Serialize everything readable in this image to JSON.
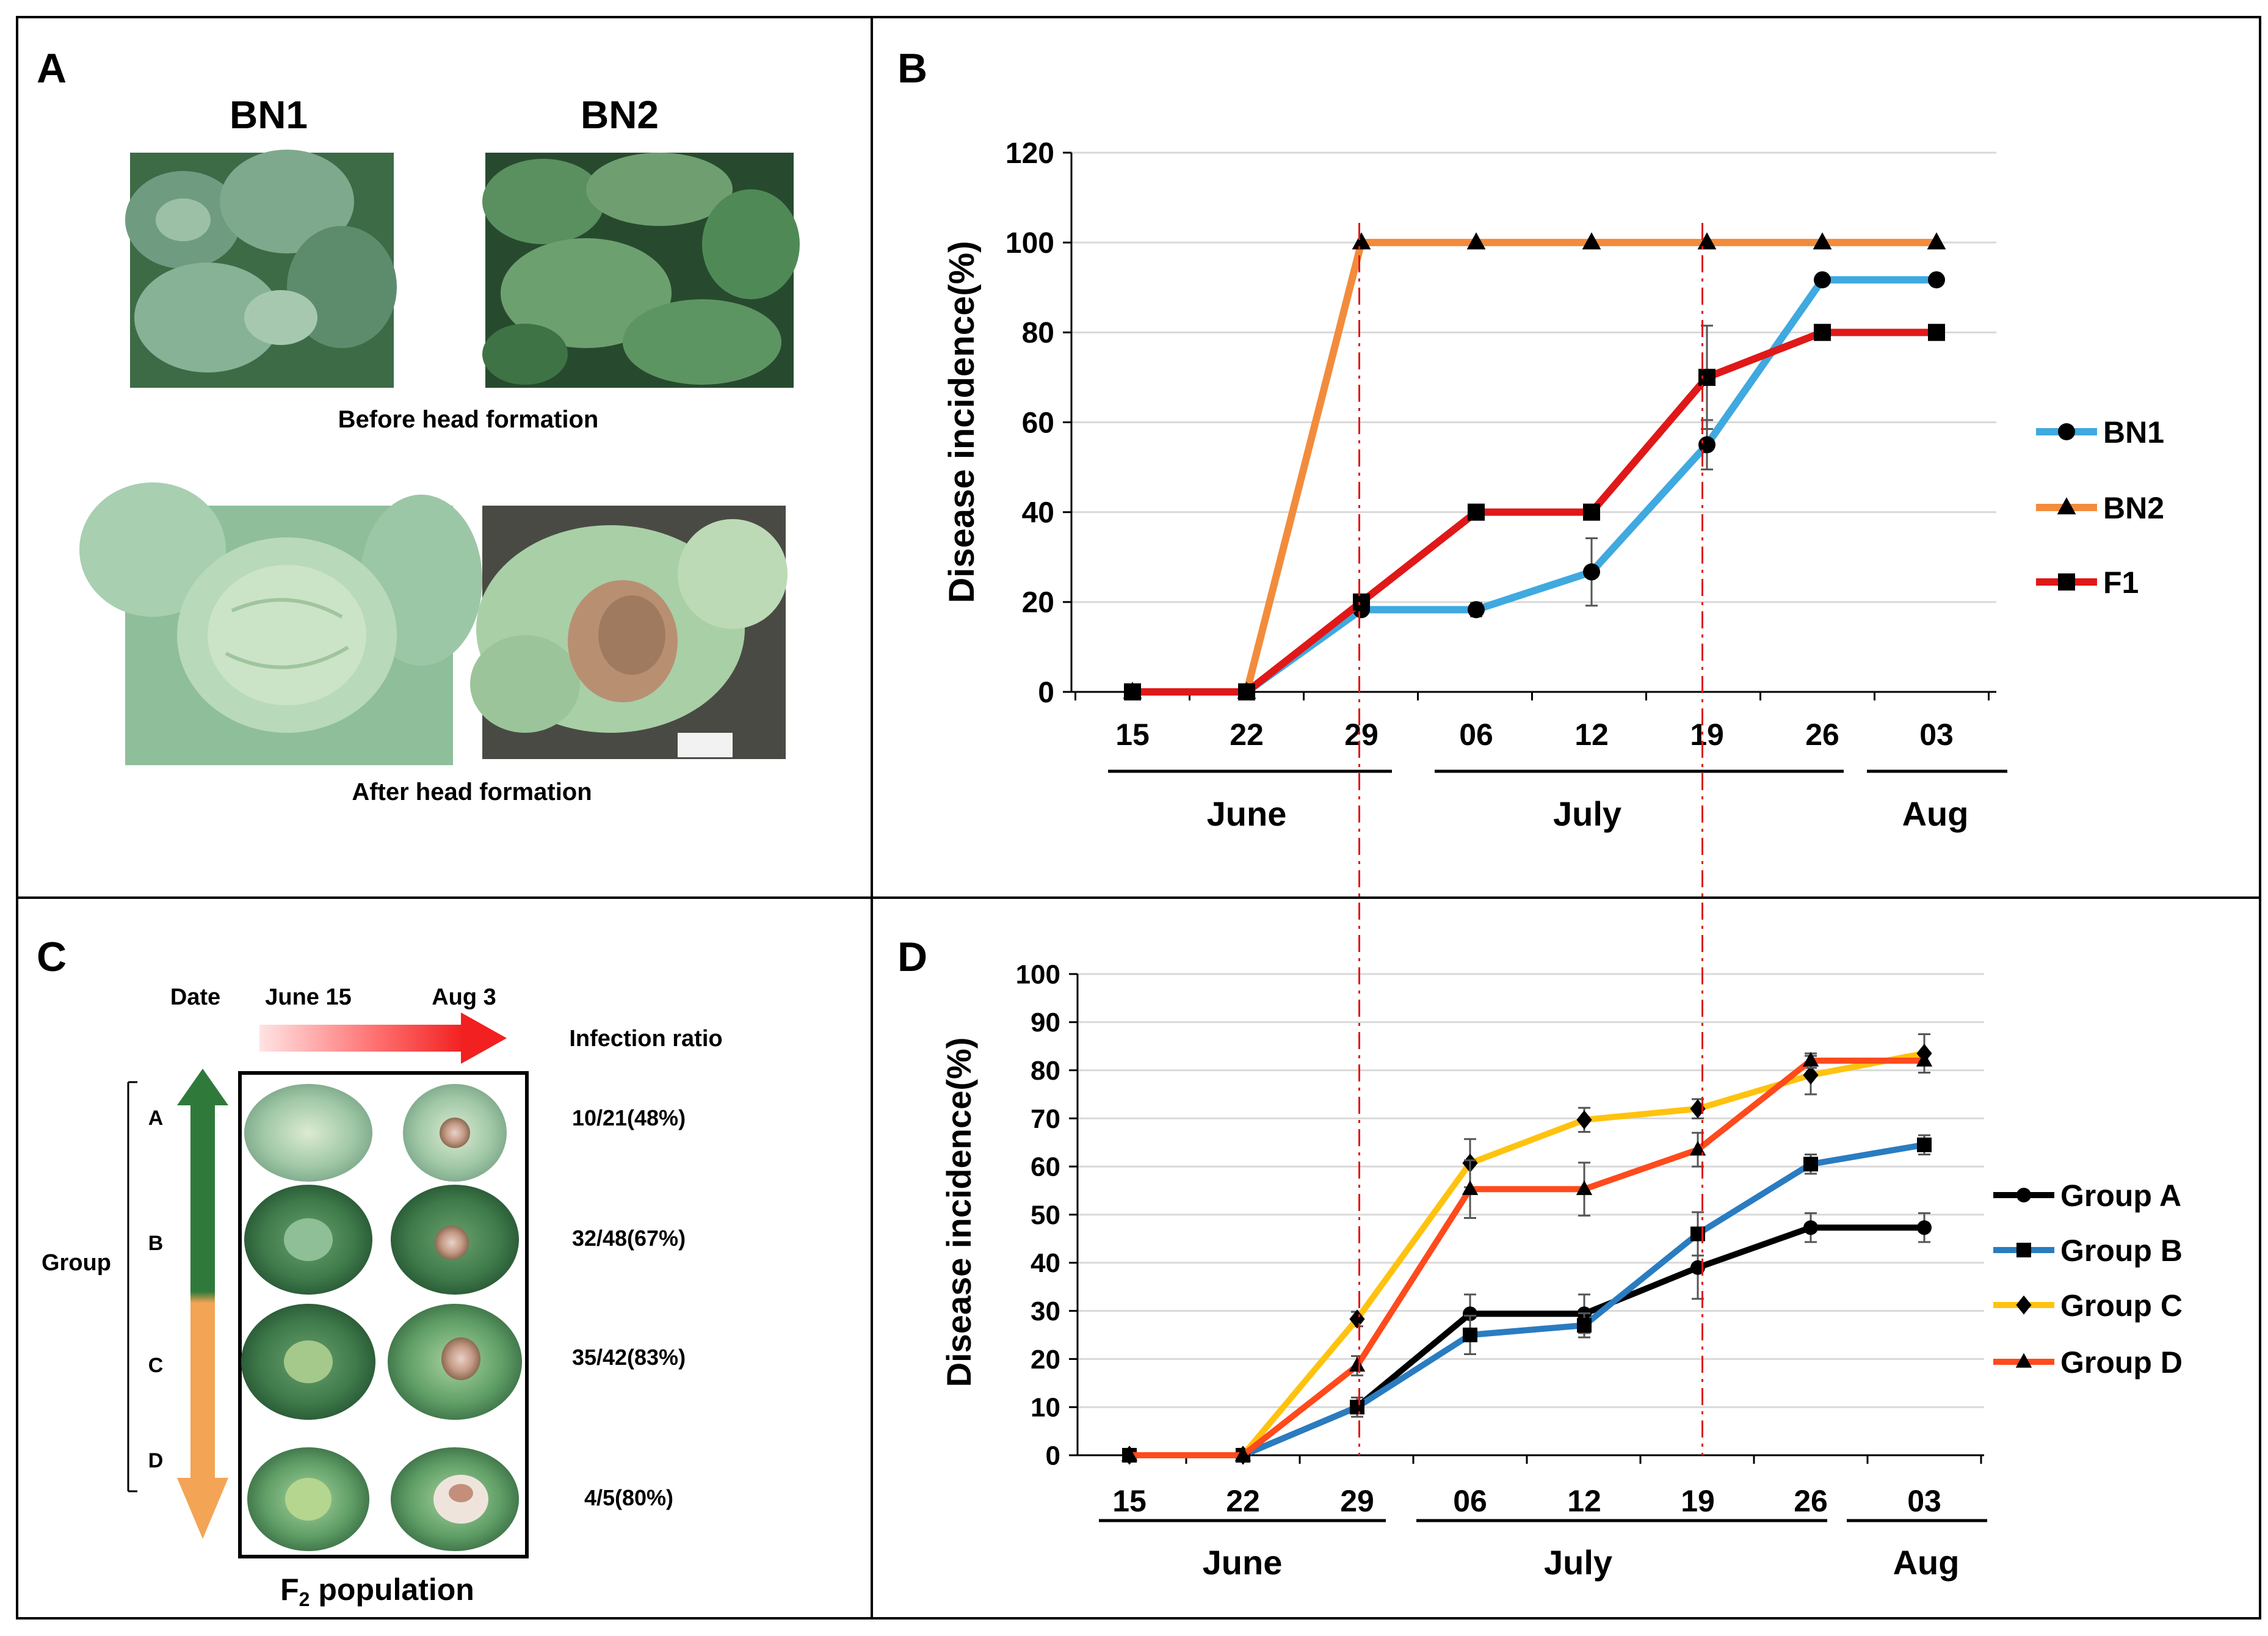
{
  "panels": {
    "a": {
      "letter": "A",
      "col1_label": "BN1",
      "col2_label": "BN2",
      "caption_before": "Before head formation",
      "caption_after": "After head formation"
    },
    "c": {
      "letter": "C",
      "date_label": "Date",
      "start_date": "June 15",
      "end_date": "Aug 3",
      "infection_ratio_label": "Infection ratio",
      "group_label": "Group",
      "groups": [
        "A",
        "B",
        "C",
        "D"
      ],
      "ratios": [
        "10/21(48%)",
        "32/48(67%)",
        "35/42(83%)",
        "4/5(80%)"
      ],
      "population_label": "F",
      "population_subscript": "2",
      "population_suffix": " population"
    }
  },
  "colors": {
    "bn1": "#3fa9e0",
    "bn2": "#f28c3c",
    "f1": "#e01818",
    "group_a": "#000000",
    "group_b": "#2a7cc0",
    "group_c": "#ffc20e",
    "group_d": "#ff4a1c",
    "guide": "#e01818",
    "gradient_green": "#2f7a3a",
    "gradient_orange": "#f4a455"
  },
  "chart_data": [
    {
      "panel": "B",
      "type": "line",
      "ylabel": "Disease incidence(%)",
      "ylim": [
        0,
        120
      ],
      "yticks": [
        0,
        20,
        40,
        60,
        80,
        100,
        120
      ],
      "categories": [
        "15",
        "22",
        "29",
        "06",
        "12",
        "19",
        "26",
        "03"
      ],
      "months": [
        "June",
        "July",
        "Aug"
      ],
      "guide_lines_at": [
        "29",
        "19"
      ],
      "legend_position": "right",
      "series": [
        {
          "name": "BN1",
          "marker": "circle",
          "values": [
            0,
            0,
            18.3,
            18.3,
            26.7,
            55,
            91.7,
            91.7
          ],
          "errors": [
            0,
            0,
            0,
            1.5,
            7.5,
            5.5,
            0,
            0
          ]
        },
        {
          "name": "BN2",
          "marker": "triangle",
          "values": [
            0,
            0,
            100,
            100,
            100,
            100,
            100,
            100
          ],
          "errors": [
            0,
            0,
            0,
            0,
            0,
            0,
            0,
            0
          ]
        },
        {
          "name": "F1",
          "marker": "square",
          "values": [
            0,
            0,
            20,
            40,
            40,
            70,
            80,
            80
          ],
          "errors": [
            0,
            0,
            0,
            0,
            0,
            11.5,
            0,
            0
          ]
        }
      ]
    },
    {
      "panel": "D",
      "type": "line",
      "ylabel": "Disease incidence(%)",
      "ylim": [
        0,
        100
      ],
      "yticks": [
        0,
        10,
        20,
        30,
        40,
        50,
        60,
        70,
        80,
        90,
        100
      ],
      "categories": [
        "15",
        "22",
        "29",
        "06",
        "12",
        "19",
        "26",
        "03"
      ],
      "months": [
        "June",
        "July",
        "Aug"
      ],
      "guide_lines_at": [
        "29",
        "19"
      ],
      "legend_position": "right",
      "series": [
        {
          "name": "Group A",
          "marker": "circle",
          "values": [
            0,
            0,
            10,
            29.4,
            29.4,
            39,
            47.3,
            47.3
          ],
          "errors": [
            0,
            0,
            1,
            4,
            4,
            6.5,
            3,
            3
          ]
        },
        {
          "name": "Group B",
          "marker": "square",
          "values": [
            0,
            0,
            10,
            25,
            27,
            46,
            60.5,
            64.5
          ],
          "errors": [
            0,
            0,
            2,
            4,
            2.5,
            4.5,
            2,
            2
          ]
        },
        {
          "name": "Group C",
          "marker": "diamond",
          "values": [
            0,
            0,
            28.3,
            60.7,
            69.7,
            72,
            79,
            83.5
          ],
          "errors": [
            0,
            0,
            1.5,
            5,
            2.5,
            2,
            4,
            4
          ]
        },
        {
          "name": "Group D",
          "marker": "triangle",
          "values": [
            0,
            0,
            18.6,
            55.3,
            55.3,
            63.5,
            82,
            82
          ],
          "errors": [
            0,
            0,
            2,
            6,
            5.5,
            3.5,
            1.5,
            0
          ]
        }
      ]
    }
  ]
}
